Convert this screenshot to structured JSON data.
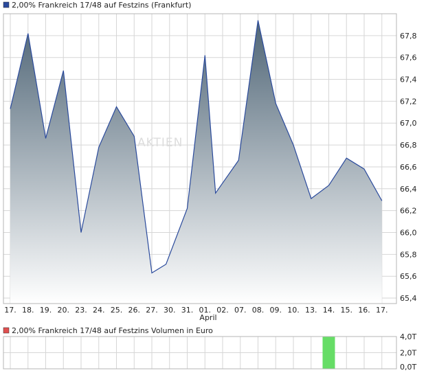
{
  "price_chart": {
    "legend_label": "2,00% Frankreich 17/48 auf Festzins (Frankfurt)",
    "legend_color": "#2a4a9c",
    "line_color": "#2a4a9c",
    "fill_top_color": "#4f6576",
    "fill_bottom_color": "#ffffff",
    "watermark": "AKTIEN",
    "month_label": "April",
    "month_label_under": "01."
  },
  "volume_chart": {
    "legend_label": "2,00% Frankreich 17/48 auf Festzins Volumen in Euro",
    "legend_color": "#e05050",
    "bar_color": "#66dd66"
  },
  "chart_data": [
    {
      "type": "area",
      "title": "2,00% Frankreich 17/48 auf Festzins (Frankfurt)",
      "categories": [
        "17.",
        "18.",
        "19.",
        "20.",
        "23.",
        "24.",
        "25.",
        "26.",
        "27.",
        "30.",
        "31.",
        "01.",
        "02.",
        "07.",
        "08.",
        "09.",
        "10.",
        "13.",
        "14.",
        "15.",
        "16.",
        "17."
      ],
      "y_axis_position": "right",
      "ylim": [
        65.35,
        68.0
      ],
      "y_ticks": [
        65.4,
        65.6,
        65.8,
        66.0,
        66.2,
        66.4,
        66.6,
        66.8,
        67.0,
        67.2,
        67.4,
        67.6,
        67.8
      ],
      "y_tick_labels": [
        "65,4",
        "65,6",
        "65,8",
        "66,0",
        "66,2",
        "66,4",
        "66,6",
        "66,8",
        "67,0",
        "67,2",
        "67,4",
        "67,6",
        "67,8"
      ],
      "grid": true,
      "points": [
        {
          "i": 0,
          "y": 67.13
        },
        {
          "i": 1,
          "y": 67.82
        },
        {
          "i": 2,
          "y": 66.86
        },
        {
          "i": 3,
          "y": 67.48
        },
        {
          "i": 4,
          "y": 66.0
        },
        {
          "i": 5,
          "y": 66.78
        },
        {
          "i": 6,
          "y": 67.15
        },
        {
          "i": 7,
          "y": 66.88
        },
        {
          "i": 8,
          "y": 65.63
        },
        {
          "i": 8.8,
          "y": 65.71
        },
        {
          "i": 10,
          "y": 66.22
        },
        {
          "i": 11,
          "y": 67.62
        },
        {
          "i": 11.6,
          "y": 66.36
        },
        {
          "i": 12.9,
          "y": 66.66
        },
        {
          "i": 14,
          "y": 67.94
        },
        {
          "i": 15,
          "y": 67.18
        },
        {
          "i": 16,
          "y": 66.8
        },
        {
          "i": 17,
          "y": 66.31
        },
        {
          "i": 18,
          "y": 66.43
        },
        {
          "i": 19,
          "y": 66.68
        },
        {
          "i": 20,
          "y": 66.58
        },
        {
          "i": 21,
          "y": 66.29
        }
      ]
    },
    {
      "type": "bar",
      "title": "2,00% Frankreich 17/48 auf Festzins Volumen in Euro",
      "y_axis_position": "right",
      "ylim": [
        0,
        4
      ],
      "y_ticks": [
        0,
        2,
        4
      ],
      "y_tick_labels": [
        "0,0T",
        "2,0T",
        "4,0T"
      ],
      "grid": true,
      "bars": [
        {
          "i": 18,
          "value": 4.0
        }
      ]
    }
  ]
}
